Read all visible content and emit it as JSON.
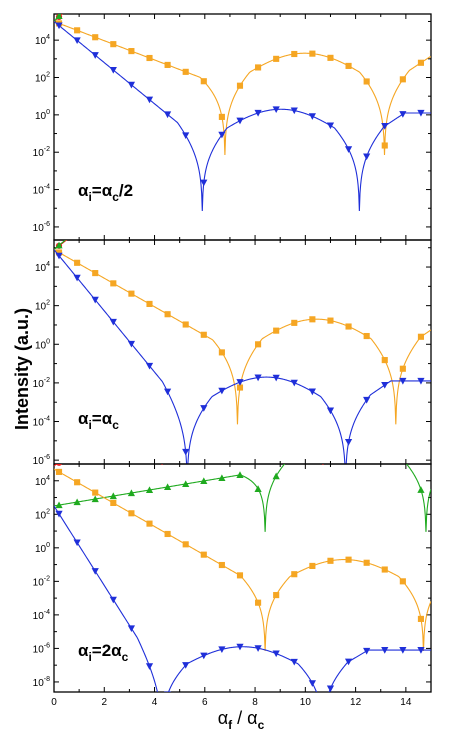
{
  "chart_data": {
    "type": "line",
    "ylabel": "Intensity (a.u.)",
    "xlabel_main": "α",
    "xlabel_sub": "f",
    "xlabel_sep": " / ",
    "xlabel_main2": "α",
    "xlabel_sub2": "c",
    "xlim": [
      0,
      15
    ],
    "x_ticks": [
      "0",
      "2",
      "4",
      "6",
      "8",
      "10",
      "12",
      "14"
    ],
    "y_scale": "log",
    "grid": false,
    "colors": {
      "red": "#ee1c1c",
      "green": "#1faa1f",
      "orange": "#f5a623",
      "blue": "#1f2fd9"
    },
    "marker_shapes": {
      "red": "circle",
      "green": "triangle-up",
      "orange": "square",
      "blue": "triangle-down"
    },
    "panels": [
      {
        "label_main": "α",
        "label_sub": "i",
        "label_eq": "=α",
        "label_sub2": "c",
        "label_tail": "/2",
        "ylim_exp": [
          -6.7,
          5.4
        ],
        "y_ticks_exp": [
          4,
          2,
          0,
          -2,
          -4,
          -6
        ],
        "series": [
          {
            "color": "red",
            "y0": 5.0,
            "n": 12.2,
            "dips": [
              5.9,
              12.15
            ]
          },
          {
            "color": "green",
            "y0": 5.0,
            "n": 15.0,
            "dips": [
              6.8,
              13.1
            ]
          },
          {
            "color": "orange",
            "y0": 5.0,
            "n": 1.5,
            "dips": [
              6.8,
              13.15
            ]
          },
          {
            "color": "blue",
            "y0": 5.0,
            "n": -1.5,
            "dips": [
              5.9,
              12.15
            ]
          }
        ]
      },
      {
        "label_main": "α",
        "label_sub": "i",
        "label_eq": "=α",
        "label_sub2": "c",
        "label_tail": "",
        "ylim_exp": [
          -6.2,
          5.4
        ],
        "y_ticks_exp": [
          4,
          2,
          0,
          -2,
          -4,
          -6
        ],
        "series": [
          {
            "color": "red",
            "y0": 4.9,
            "n": 10.2,
            "dips": [
              5.3,
              11.6
            ]
          },
          {
            "color": "green",
            "y0": 4.9,
            "n": 13.0,
            "dips": [
              7.3,
              13.6
            ]
          },
          {
            "color": "orange",
            "y0": 4.9,
            "n": -0.5,
            "dips": [
              7.3,
              13.6
            ]
          },
          {
            "color": "blue",
            "y0": 4.9,
            "n": -3.5,
            "dips": [
              5.3,
              11.6
            ]
          }
        ]
      },
      {
        "label_main": "α",
        "label_sub": "i",
        "label_eq": "=2α",
        "label_sub2": "c",
        "label_tail": "",
        "ylim_exp": [
          -8.6,
          5.0
        ],
        "y_ticks_exp": [
          4,
          2,
          0,
          -2,
          -4,
          -6,
          -8
        ],
        "series": [
          {
            "color": "red",
            "y0": 4.9,
            "n": 8.6,
            "dips": [
              4.3,
              10.7
            ]
          },
          {
            "color": "green",
            "y0": 2.5,
            "n": 4.6,
            "dips": [
              8.4,
              14.8
            ]
          },
          {
            "color": "orange",
            "y0": 4.7,
            "n": -2.5,
            "dips": [
              8.4,
              14.7
            ]
          },
          {
            "color": "blue",
            "y0": 2.5,
            "n": -7.7,
            "dips": [
              4.3,
              10.7
            ]
          }
        ]
      }
    ]
  }
}
